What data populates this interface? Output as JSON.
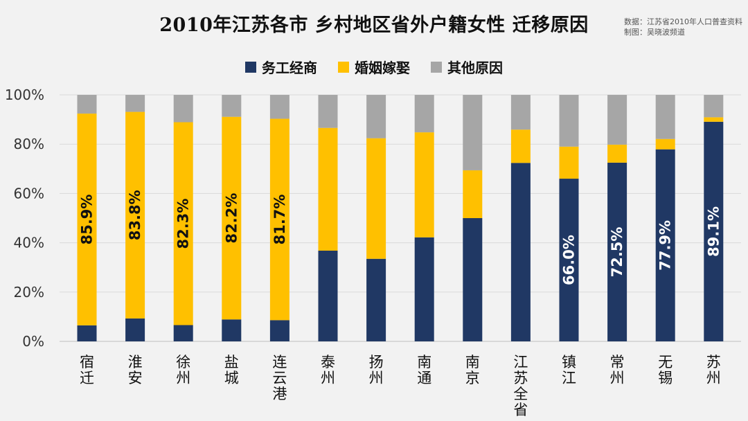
{
  "chart_data": {
    "type": "bar",
    "stacked": true,
    "title": "2010年江苏各市 乡村地区省外户籍女性 迁移原因",
    "source": [
      "数据：江苏省2010年人口普查资料",
      "制图：吴晓波频道"
    ],
    "categories": [
      "宿迁",
      "淮安",
      "徐州",
      "盐城",
      "连云港",
      "泰州",
      "扬州",
      "南通",
      "南京",
      "江苏全省",
      "镇江",
      "常州",
      "无锡",
      "苏州"
    ],
    "series": [
      {
        "name": "务工经商",
        "color": "#203864",
        "values": [
          6.5,
          9.3,
          6.6,
          8.9,
          8.6,
          36.8,
          33.5,
          42.2,
          50.0,
          72.4,
          66.0,
          72.5,
          77.9,
          89.1
        ]
      },
      {
        "name": "婚姻嫁娶",
        "color": "#ffc000",
        "values": [
          85.9,
          83.8,
          82.3,
          82.2,
          81.7,
          49.8,
          48.9,
          42.6,
          19.4,
          13.5,
          13.0,
          7.3,
          4.2,
          1.8
        ]
      },
      {
        "name": "其他原因",
        "color": "#a6a6a6",
        "values": [
          7.6,
          6.9,
          11.1,
          8.9,
          9.7,
          13.4,
          17.6,
          15.2,
          30.6,
          14.1,
          21.0,
          20.2,
          17.9,
          9.1
        ]
      }
    ],
    "data_labels": [
      {
        "category": "宿迁",
        "series": "婚姻嫁娶",
        "text": "85.9%"
      },
      {
        "category": "淮安",
        "series": "婚姻嫁娶",
        "text": "83.8%"
      },
      {
        "category": "徐州",
        "series": "婚姻嫁娶",
        "text": "82.3%"
      },
      {
        "category": "盐城",
        "series": "婚姻嫁娶",
        "text": "82.2%"
      },
      {
        "category": "连云港",
        "series": "婚姻嫁娶",
        "text": "81.7%"
      },
      {
        "category": "镇江",
        "series": "务工经商",
        "text": "66.0%"
      },
      {
        "category": "常州",
        "series": "务工经商",
        "text": "72.5%"
      },
      {
        "category": "无锡",
        "series": "务工经商",
        "text": "77.9%"
      },
      {
        "category": "苏州",
        "series": "务工经商",
        "text": "89.1%"
      }
    ],
    "ylim": [
      0,
      100
    ],
    "yticks": [
      "0%",
      "20%",
      "40%",
      "60%",
      "80%",
      "100%"
    ],
    "grid": true,
    "legend": "top-center"
  }
}
